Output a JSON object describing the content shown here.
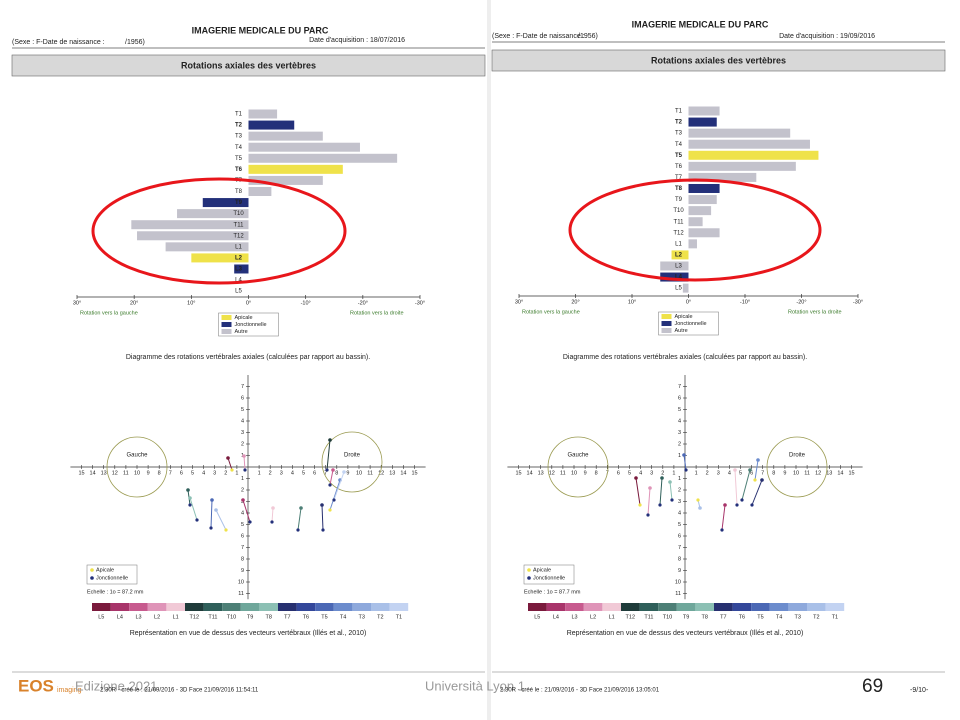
{
  "reports": [
    {
      "header": {
        "title": "IMAGERIE MEDICALE DU PARC",
        "patient": "(Sexe : F-Date de naissance :",
        "birth": "/1956)",
        "acquisition": "Date d'acquisition : 18/07/2016"
      },
      "section": "Rotations axiales des vertèbres",
      "chart_data": {
        "type": "bar",
        "orientation": "horizontal",
        "categories": [
          "T1",
          "T2",
          "T3",
          "T4",
          "T5",
          "T6",
          "T7",
          "T8",
          "T9",
          "T10",
          "T11",
          "T12",
          "L1",
          "L2",
          "L3",
          "L4",
          "L5"
        ],
        "values": [
          -5,
          -8,
          -13,
          -19.5,
          -26,
          -16.5,
          -13,
          -4,
          8,
          12.5,
          20.5,
          19.5,
          14.5,
          10,
          2.5,
          0,
          0
        ],
        "colors": [
          "#c3c2cc",
          "#23307a",
          "#c3c2cc",
          "#c3c2cc",
          "#c3c2cc",
          "#efe24a",
          "#c3c2cc",
          "#c3c2cc",
          "#23307a",
          "#c3c2cc",
          "#c3c2cc",
          "#c3c2cc",
          "#c3c2cc",
          "#efe24a",
          "#23307a",
          "#c3c2cc",
          "#c3c2cc"
        ],
        "xlim": [
          30,
          -30
        ],
        "xticks": [
          {
            "value": 30,
            "label": "30°"
          },
          {
            "value": 20,
            "label": "20°"
          },
          {
            "value": 10,
            "label": "10°"
          },
          {
            "value": 0,
            "label": "0°"
          },
          {
            "value": -10,
            "label": "-10°"
          },
          {
            "value": -20,
            "label": "-20°"
          },
          {
            "value": -30,
            "label": "-30°"
          }
        ],
        "left_label": "Rotation vers la gauche",
        "right_label": "Rotation vers la droite",
        "legend": [
          {
            "name": "Apicale",
            "color": "#efe24a"
          },
          {
            "name": "Jonctionnelle",
            "color": "#23307a"
          },
          {
            "name": "Autre",
            "color": "#c3c2cc"
          }
        ],
        "caption": "Diagramme des rotations vertébrales axiales (calculées par rapport au bassin)."
      },
      "vectors": {
        "gauche": "Gauche",
        "droite": "Droite",
        "legend": [
          "Apicale",
          "Jonctionnelle"
        ],
        "scale": "Echelle : 1o = 87.2 mm",
        "hticks_left": [
          15,
          14,
          13,
          12,
          11,
          10,
          9,
          8,
          7,
          6,
          5,
          4,
          3,
          2,
          1
        ],
        "hticks_right": [
          1,
          2,
          3,
          4,
          5,
          6,
          7,
          8,
          9,
          10,
          11,
          12,
          13,
          14,
          15
        ],
        "vticks_up": [
          7,
          6,
          5,
          4,
          3,
          2,
          1
        ],
        "vticks_down": [
          1,
          2,
          3,
          4,
          5,
          6,
          7,
          8,
          9,
          10,
          11
        ],
        "color_scale": [
          "L5",
          "L4",
          "L3",
          "L2",
          "L1",
          "T12",
          "T11",
          "T10",
          "T9",
          "T8",
          "T7",
          "T6",
          "T5",
          "T4",
          "T3",
          "T2",
          "T1"
        ],
        "color_scale_colors": [
          "#7a1a3c",
          "#a8346a",
          "#c75a8e",
          "#df94b8",
          "#f1c9d6",
          "#1f3b3a",
          "#2f5f5a",
          "#4d7f76",
          "#6fa79b",
          "#8cc0b4",
          "#273070",
          "#33479a",
          "#4b68b5",
          "#6c8ccd",
          "#8ea9dc",
          "#a9c0e8",
          "#c3d3f2"
        ],
        "caption": "Représentation en vue de dessus des vecteurs vertébraux (Illés et al., 2010)"
      },
      "footer": "2.30R - créé le : 21/09/2016 - 3D Face 21/09/2016 11:54:11"
    },
    {
      "header": {
        "title": "IMAGERIE MEDICALE DU PARC",
        "patient": "(Sexe : F-Date de naissance :",
        "birth": "/1956)",
        "acquisition": "Date d'acquisition : 19/09/2016"
      },
      "section": "Rotations axiales des vertèbres",
      "chart_data": {
        "type": "bar",
        "orientation": "horizontal",
        "categories": [
          "T1",
          "T2",
          "T3",
          "T4",
          "T5",
          "T6",
          "T7",
          "T8",
          "T9",
          "T10",
          "T11",
          "T12",
          "L1",
          "L2",
          "L3",
          "L4",
          "L5"
        ],
        "values": [
          -5.5,
          -5,
          -18,
          -21.5,
          -23,
          -19,
          -12,
          -5.5,
          -5,
          -4,
          -2.5,
          -5.5,
          -1.5,
          3,
          5,
          5,
          1
        ],
        "colors": [
          "#c3c2cc",
          "#23307a",
          "#c3c2cc",
          "#c3c2cc",
          "#efe24a",
          "#c3c2cc",
          "#c3c2cc",
          "#23307a",
          "#c3c2cc",
          "#c3c2cc",
          "#c3c2cc",
          "#c3c2cc",
          "#c3c2cc",
          "#efe24a",
          "#c3c2cc",
          "#23307a",
          "#c3c2cc"
        ],
        "xlim": [
          30,
          -30
        ],
        "xticks": [
          {
            "value": 30,
            "label": "30°"
          },
          {
            "value": 20,
            "label": "20°"
          },
          {
            "value": 10,
            "label": "10°"
          },
          {
            "value": 0,
            "label": "0°"
          },
          {
            "value": -10,
            "label": "-10°"
          },
          {
            "value": -20,
            "label": "-20°"
          },
          {
            "value": -30,
            "label": "-30°"
          }
        ],
        "left_label": "Rotation vers la gauche",
        "right_label": "Rotation vers la droite",
        "legend": [
          {
            "name": "Apicale",
            "color": "#efe24a"
          },
          {
            "name": "Jonctionnelle",
            "color": "#23307a"
          },
          {
            "name": "Autre",
            "color": "#c3c2cc"
          }
        ],
        "caption": "Diagramme des rotations vertébrales axiales (calculées par rapport au bassin)."
      },
      "vectors": {
        "gauche": "Gauche",
        "droite": "Droite",
        "legend": [
          "Apicale",
          "Jonctionnelle"
        ],
        "scale": "Echelle : 1o = 87.7 mm",
        "hticks_left": [
          15,
          14,
          13,
          12,
          11,
          10,
          9,
          8,
          7,
          6,
          5,
          4,
          3,
          2,
          1
        ],
        "hticks_right": [
          1,
          2,
          3,
          4,
          5,
          6,
          7,
          8,
          9,
          10,
          11,
          12,
          13,
          14,
          15
        ],
        "vticks_up": [
          7,
          6,
          5,
          4,
          3,
          2,
          1
        ],
        "vticks_down": [
          1,
          2,
          3,
          4,
          5,
          6,
          7,
          8,
          9,
          10,
          11
        ],
        "color_scale": [
          "L5",
          "L4",
          "L3",
          "L2",
          "L1",
          "T12",
          "T11",
          "T10",
          "T9",
          "T8",
          "T7",
          "T6",
          "T5",
          "T4",
          "T3",
          "T2",
          "T1"
        ],
        "color_scale_colors": [
          "#7a1a3c",
          "#a8346a",
          "#c75a8e",
          "#df94b8",
          "#f1c9d6",
          "#1f3b3a",
          "#2f5f5a",
          "#4d7f76",
          "#6fa79b",
          "#8cc0b4",
          "#273070",
          "#33479a",
          "#4b68b5",
          "#6c8ccd",
          "#8ea9dc",
          "#a9c0e8",
          "#c3d3f2"
        ],
        "caption": "Représentation en vue de dessus des vecteurs vertébraux (Illés et al., 2010)"
      },
      "footer": "2.30R - créé le : 21/09/2016 - 3D Face 21/09/2016 13:05:01"
    }
  ],
  "slide": {
    "edition": "Edizione 2021",
    "university": "Università Lyon 1",
    "page": "69",
    "logo": "EOS",
    "logo_sub": "imaging",
    "page_ref": "-9/10-"
  }
}
